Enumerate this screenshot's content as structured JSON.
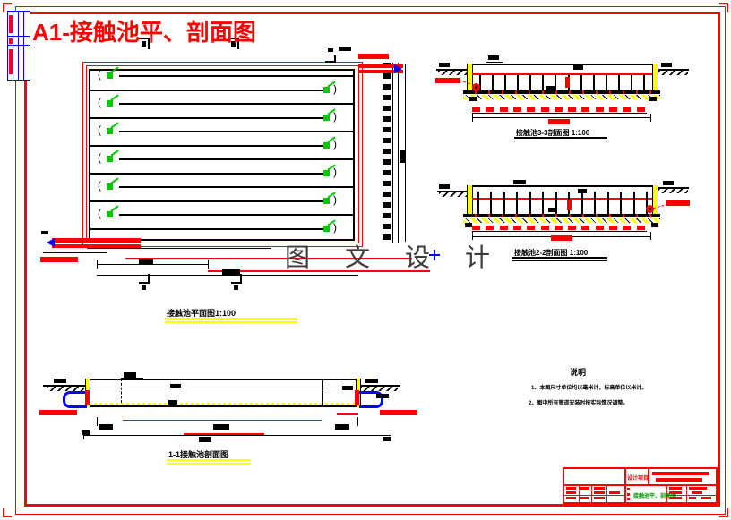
{
  "drawing": {
    "title": "A1-接触池平、剖面图",
    "watermark": "图 文 设 计",
    "plan": {
      "label": "接触池平面图1:100",
      "baffles": 12
    },
    "section_33": {
      "label": "接触池3-3剖面图 1:100",
      "baffles": 14,
      "dim_blocks": 13
    },
    "section_22": {
      "label": "接触池2-2剖面图 1:100",
      "baffles": 14,
      "dim_blocks": 13
    },
    "section_11": {
      "label": "1-1接触池剖面图"
    },
    "notes": {
      "title": "说明",
      "items": [
        "1、本图尺寸单位均以毫米计，标高单位以米计。",
        "2、图中所有管道安装时按实际情况调整。"
      ]
    },
    "title_block": {
      "project_label": "设计项目",
      "drawing_name": "接触池平、剖面图"
    },
    "colors": {
      "line_red": "#ff0000",
      "line_blue": "#0000ff",
      "symbol_green": "#00c800",
      "wall_yellow": "#ffff00",
      "ink": "#000000"
    }
  }
}
